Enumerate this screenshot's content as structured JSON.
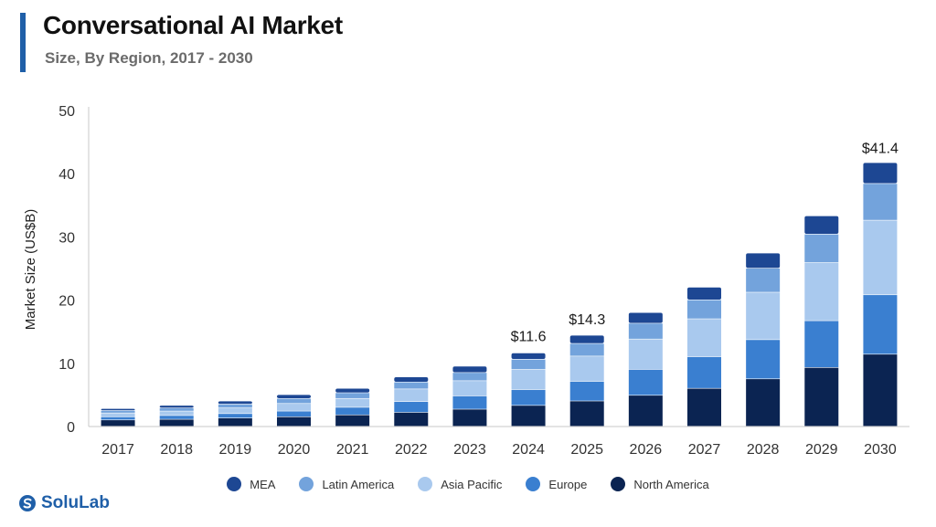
{
  "header": {
    "title": "Conversational AI Market",
    "subtitle": "Size, By Region, 2017 - 2030"
  },
  "brand": {
    "name": "SoluLab",
    "icon": "solulab-logo-icon"
  },
  "chart_data": {
    "type": "bar",
    "stacked": true,
    "title": "Conversational AI Market",
    "subtitle": "Size, By Region, 2017 - 2030",
    "xlabel": "",
    "ylabel": "Market Size (US$B)",
    "ylim": [
      0,
      50
    ],
    "yticks": [
      0,
      10,
      20,
      30,
      40,
      50
    ],
    "grid": false,
    "legend_position": "bottom",
    "categories": [
      "2017",
      "2018",
      "2019",
      "2020",
      "2021",
      "2022",
      "2023",
      "2024",
      "2025",
      "2026",
      "2027",
      "2028",
      "2029",
      "2030"
    ],
    "series": [
      {
        "name": "North America",
        "color": "#0b2452",
        "values": [
          1.0,
          1.1,
          1.3,
          1.5,
          1.8,
          2.2,
          2.7,
          3.3,
          4.0,
          4.9,
          6.0,
          7.5,
          9.3,
          11.4
        ]
      },
      {
        "name": "Europe",
        "color": "#3a7fd0",
        "values": [
          0.5,
          0.6,
          0.7,
          0.9,
          1.2,
          1.7,
          2.1,
          2.5,
          3.1,
          4.1,
          5.0,
          6.2,
          7.4,
          9.4
        ]
      },
      {
        "name": "Asia Pacific",
        "color": "#a9c9ee",
        "values": [
          0.6,
          0.7,
          0.9,
          1.2,
          1.4,
          2.0,
          2.4,
          3.2,
          4.0,
          4.8,
          6.0,
          7.5,
          9.2,
          11.8
        ]
      },
      {
        "name": "Latin America",
        "color": "#73a3dc",
        "values": [
          0.4,
          0.5,
          0.6,
          0.8,
          0.9,
          1.1,
          1.3,
          1.6,
          2.0,
          2.5,
          3.0,
          3.8,
          4.5,
          5.8
        ]
      },
      {
        "name": "MEA",
        "color": "#1d4793",
        "values": [
          0.3,
          0.4,
          0.5,
          0.6,
          0.7,
          0.8,
          1.0,
          1.0,
          1.3,
          1.7,
          2.0,
          2.4,
          2.9,
          3.3
        ]
      }
    ],
    "totals": [
      2.8,
      3.3,
      4.0,
      5.0,
      6.0,
      7.8,
      9.5,
      11.6,
      14.3,
      18.0,
      22.0,
      27.4,
      33.3,
      41.4
    ],
    "annotations": [
      {
        "category": "2024",
        "label": "$11.6"
      },
      {
        "category": "2025",
        "label": "$14.3"
      },
      {
        "category": "2030",
        "label": "$41.4"
      }
    ],
    "legend_order": [
      "MEA",
      "Latin America",
      "Asia Pacific",
      "Europe",
      "North America"
    ]
  }
}
